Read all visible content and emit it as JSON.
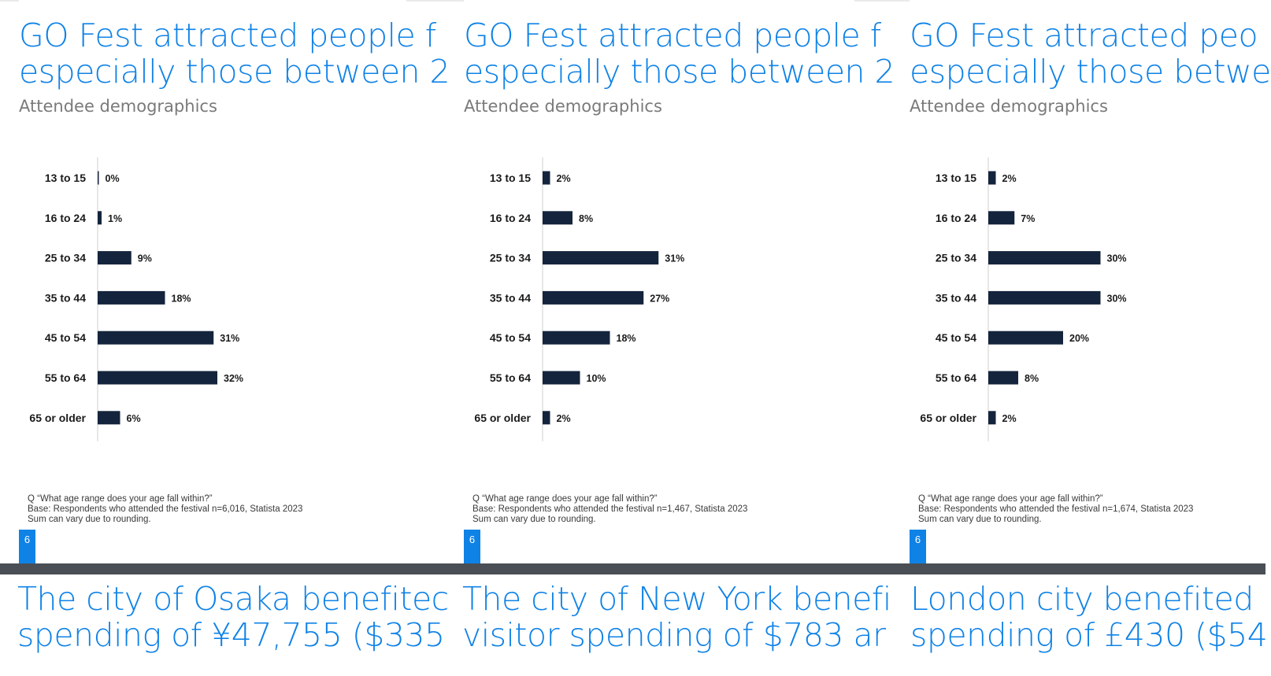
{
  "colors": {
    "title": "#0f82e6",
    "bar": "#14243c",
    "subtitle": "#7a7a7a",
    "tab": "#0f82e6",
    "divider": "#4a4f55"
  },
  "slides": [
    {
      "title_lines": [
        "GO Fest attracted people f",
        "especially those between 2"
      ],
      "subtitle": "Attendee demographics",
      "footnote": [
        "Q “What age range does your age fall within?”",
        "Base: Respondents who attended the festival n=6,016, Statista 2023",
        "Sum can vary due to rounding."
      ],
      "page_number": "6"
    },
    {
      "title_lines": [
        "GO Fest attracted people f",
        "especially those between 2"
      ],
      "subtitle": "Attendee demographics",
      "footnote": [
        "Q “What age range does your age fall within?”",
        "Base: Respondents who attended the festival n=1,467, Statista 2023",
        "Sum can vary due to rounding."
      ],
      "page_number": "6"
    },
    {
      "title_lines": [
        "GO Fest attracted peo",
        "especially those betwe"
      ],
      "subtitle": "Attendee demographics",
      "footnote": [
        "Q “What age range does your age fall within?”",
        "Base: Respondents who attended the festival n=1,674, Statista 2023",
        "Sum can vary due to rounding."
      ],
      "page_number": "6"
    }
  ],
  "next_slides": [
    {
      "title_lines": [
        "The city of Osaka benefitec",
        "spending of ¥47,755 ($335"
      ]
    },
    {
      "title_lines": [
        "The city of New York benefi",
        "visitor spending of $783 ar"
      ]
    },
    {
      "title_lines": [
        "London city benefited",
        "spending of £430 ($54"
      ]
    }
  ],
  "chart_data": [
    {
      "type": "bar",
      "orientation": "horizontal",
      "categories": [
        "13 to 15",
        "16 to 24",
        "25 to 34",
        "35 to 44",
        "45 to 54",
        "55 to 64",
        "65 or older"
      ],
      "values": [
        0,
        1,
        9,
        18,
        31,
        32,
        6
      ],
      "value_labels": [
        "0%",
        "1%",
        "9%",
        "18%",
        "31%",
        "32%",
        "6%"
      ],
      "unit": "%",
      "grid": false
    },
    {
      "type": "bar",
      "orientation": "horizontal",
      "categories": [
        "13 to 15",
        "16 to 24",
        "25 to 34",
        "35 to 44",
        "45 to 54",
        "55 to 64",
        "65 or older"
      ],
      "values": [
        2,
        8,
        31,
        27,
        18,
        10,
        2
      ],
      "value_labels": [
        "2%",
        "8%",
        "31%",
        "27%",
        "18%",
        "10%",
        "2%"
      ],
      "unit": "%",
      "grid": false
    },
    {
      "type": "bar",
      "orientation": "horizontal",
      "categories": [
        "13 to 15",
        "16 to 24",
        "25 to 34",
        "35 to 44",
        "45 to 54",
        "55 to 64",
        "65 or older"
      ],
      "values": [
        2,
        7,
        30,
        30,
        20,
        8,
        2
      ],
      "value_labels": [
        "2%",
        "7%",
        "30%",
        "30%",
        "20%",
        "8%",
        "2%"
      ],
      "unit": "%",
      "grid": false
    }
  ]
}
